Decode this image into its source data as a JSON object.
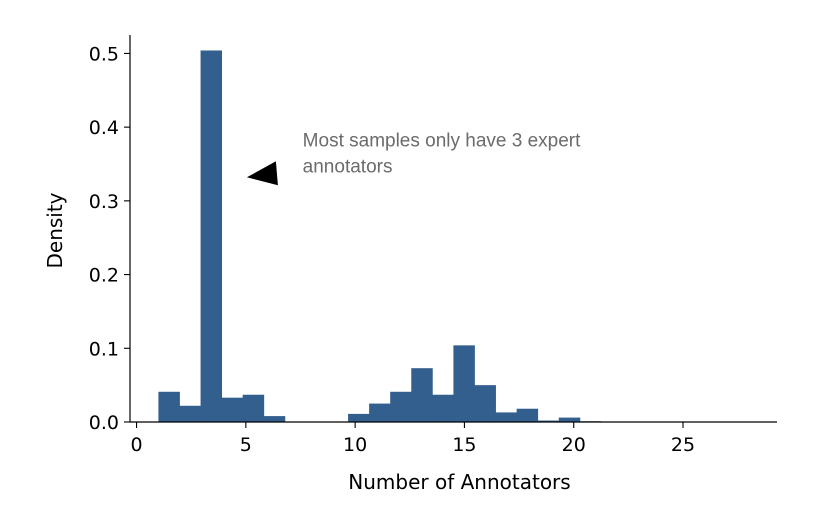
{
  "chart_data": {
    "type": "bar",
    "xlabel": "Number of Annotators",
    "ylabel": "Density",
    "xlim": [
      -0.3,
      29.3
    ],
    "ylim": [
      0,
      0.525
    ],
    "xticks": [
      "0",
      "5",
      "10",
      "15",
      "20",
      "25"
    ],
    "xtick_values": [
      0,
      5,
      10,
      15,
      20,
      25
    ],
    "yticks": [
      "0.0",
      "0.1",
      "0.2",
      "0.3",
      "0.4",
      "0.5"
    ],
    "ytick_values": [
      0.0,
      0.1,
      0.2,
      0.3,
      0.4,
      0.5
    ],
    "bin_width": 0.964,
    "bins": [
      {
        "x0": 1.0,
        "value": 0.041
      },
      {
        "x0": 1.964,
        "value": 0.022
      },
      {
        "x0": 2.928,
        "value": 0.504
      },
      {
        "x0": 3.892,
        "value": 0.033
      },
      {
        "x0": 4.856,
        "value": 0.037
      },
      {
        "x0": 5.82,
        "value": 0.008
      },
      {
        "x0": 6.784,
        "value": 0.0
      },
      {
        "x0": 7.748,
        "value": 0.0
      },
      {
        "x0": 8.712,
        "value": 0.0
      },
      {
        "x0": 9.676,
        "value": 0.011
      },
      {
        "x0": 10.64,
        "value": 0.025
      },
      {
        "x0": 11.604,
        "value": 0.041
      },
      {
        "x0": 12.568,
        "value": 0.073
      },
      {
        "x0": 13.532,
        "value": 0.037
      },
      {
        "x0": 14.496,
        "value": 0.104
      },
      {
        "x0": 15.46,
        "value": 0.05
      },
      {
        "x0": 16.424,
        "value": 0.013
      },
      {
        "x0": 17.388,
        "value": 0.018
      },
      {
        "x0": 18.352,
        "value": 0.002
      },
      {
        "x0": 19.316,
        "value": 0.006
      },
      {
        "x0": 20.28,
        "value": 0.001
      },
      {
        "x0": 21.244,
        "value": 0.0005
      },
      {
        "x0": 22.208,
        "value": 0.0003
      },
      {
        "x0": 23.172,
        "value": 0.0003
      },
      {
        "x0": 24.136,
        "value": 0.0003
      },
      {
        "x0": 25.1,
        "value": 0.0003
      },
      {
        "x0": 26.064,
        "value": 0.0003
      },
      {
        "x0": 27.028,
        "value": 0.0003
      }
    ],
    "annotation": {
      "lines": [
        "Most samples only have 3 expert",
        "annotators"
      ],
      "arrow_tip": {
        "x": 5.05,
        "y": 0.332
      },
      "text_anchor": {
        "x": 7.6,
        "y": 0.355
      }
    },
    "grid": false,
    "bar_color": "#335f8f",
    "annotation_color": "#6b6b6b"
  }
}
